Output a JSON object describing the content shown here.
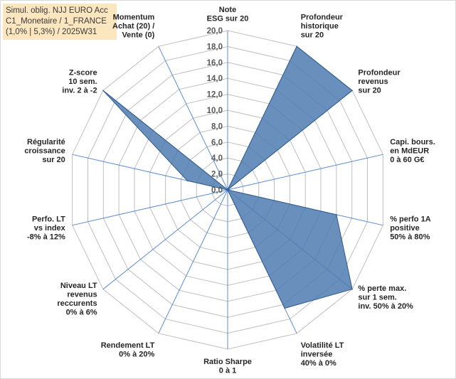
{
  "title_lines": [
    "Simul. oblig. NJJ EURO Acc",
    "C1_Monetaire / 1_FRANCE",
    "(1,0% | 5,3%) / 2025W31"
  ],
  "colors": {
    "fill": "#4f7bb0",
    "stroke": "#2e5a8e",
    "grid": "#bfbfbf",
    "spoke": "#5b8bd0",
    "title_bg": "#fbe6bf"
  },
  "chart_data": {
    "type": "radar",
    "title": "",
    "rmin": 0,
    "rmax": 20,
    "ticks": [
      "0,0",
      "2,0",
      "4,0",
      "6,0",
      "8,0",
      "10,0",
      "12,0",
      "14,0",
      "16,0",
      "18,0",
      "20,0"
    ],
    "grid": true,
    "legend": "none",
    "axes": [
      {
        "label": [
          "Note",
          "ESG sur 20"
        ],
        "value": 0
      },
      {
        "label": [
          "Profondeur",
          "historique",
          "sur 20"
        ],
        "value": 20
      },
      {
        "label": [
          "Profondeur",
          "revenus",
          "sur 20"
        ],
        "value": 20
      },
      {
        "label": [
          "Capi. bours.",
          "en MdEUR",
          "0 à 60 G€"
        ],
        "value": 0
      },
      {
        "label": [
          "% perfo 1A",
          "positive",
          "50% à 80%"
        ],
        "value": 14
      },
      {
        "label": [
          "% perte max.",
          "sur 1 sem.",
          "inv. 50% à 20%"
        ],
        "value": 20
      },
      {
        "label": [
          "Volatilité LT",
          "inversée",
          "40% à 0%"
        ],
        "value": 16.5
      },
      {
        "label": [
          "Ratio Sharpe",
          "0 à 1"
        ],
        "value": 0
      },
      {
        "label": [
          "Rendement LT",
          "0% à 20%"
        ],
        "value": 0
      },
      {
        "label": [
          "Niveau LT",
          "revenus",
          "reccurents",
          "0% à 6%"
        ],
        "value": 0
      },
      {
        "label": [
          "Perfo. LT",
          "vs index",
          "-8% à 12%"
        ],
        "value": 0
      },
      {
        "label": [
          "Régularité",
          "croissance",
          "sur 20"
        ],
        "value": 5.2
      },
      {
        "label": [
          "Z-score",
          "10 sem.",
          "inv. 2 à -2"
        ],
        "value": 20
      },
      {
        "label": [
          "Momentum",
          "Achat (20) /",
          "Vente (0)"
        ],
        "value": 0
      }
    ]
  }
}
